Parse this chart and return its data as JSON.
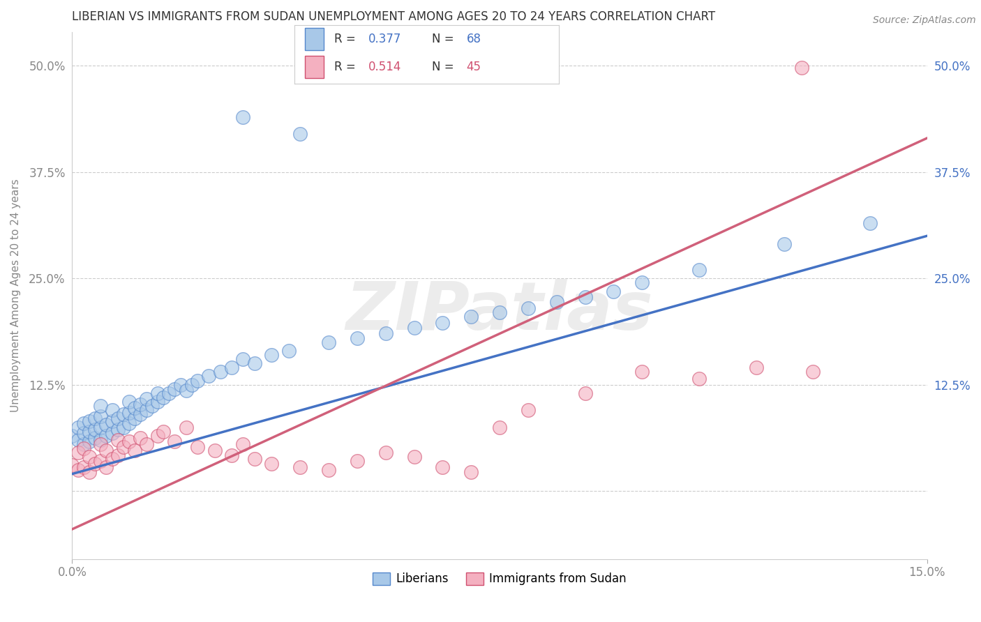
{
  "title": "LIBERIAN VS IMMIGRANTS FROM SUDAN UNEMPLOYMENT AMONG AGES 20 TO 24 YEARS CORRELATION CHART",
  "source": "Source: ZipAtlas.com",
  "ylabel": "Unemployment Among Ages 20 to 24 years",
  "ytick_labels": [
    "",
    "12.5%",
    "25.0%",
    "37.5%",
    "50.0%"
  ],
  "ytick_values": [
    0.0,
    0.125,
    0.25,
    0.375,
    0.5
  ],
  "right_ytick_labels": [
    "",
    "12.5%",
    "25.0%",
    "37.5%",
    "50.0%"
  ],
  "xmin": 0.0,
  "xmax": 0.15,
  "ymin": -0.08,
  "ymax": 0.54,
  "liberian_color": "#a8c8e8",
  "liberian_edge_color": "#5588cc",
  "sudan_color": "#f4b0c0",
  "sudan_edge_color": "#d05070",
  "liberian_line_color": "#4472c4",
  "sudan_line_color": "#d0607a",
  "liberian_R": 0.377,
  "liberian_N": 68,
  "sudan_R": 0.514,
  "sudan_N": 45,
  "watermark": "ZIPatlas",
  "legend_label_1": "Liberians",
  "legend_label_2": "Immigrants from Sudan",
  "liberian_x": [
    0.001,
    0.001,
    0.002,
    0.002,
    0.003,
    0.003,
    0.004,
    0.004,
    0.005,
    0.005,
    0.005,
    0.006,
    0.006,
    0.007,
    0.007,
    0.008,
    0.008,
    0.009,
    0.009,
    0.01,
    0.01,
    0.01,
    0.012,
    0.012,
    0.013,
    0.013,
    0.014,
    0.015,
    0.015,
    0.016,
    0.016,
    0.017,
    0.018,
    0.019,
    0.02,
    0.02,
    0.021,
    0.022,
    0.023,
    0.024,
    0.025,
    0.026,
    0.028,
    0.03,
    0.032,
    0.035,
    0.038,
    0.04,
    0.042,
    0.045,
    0.048,
    0.05,
    0.055,
    0.06,
    0.065,
    0.07,
    0.075,
    0.08,
    0.085,
    0.09,
    0.095,
    0.1,
    0.105,
    0.11,
    0.115,
    0.12,
    0.13,
    0.14
  ],
  "liberian_y": [
    0.055,
    0.065,
    0.06,
    0.07,
    0.058,
    0.072,
    0.055,
    0.068,
    0.06,
    0.075,
    0.08,
    0.058,
    0.068,
    0.062,
    0.078,
    0.06,
    0.072,
    0.065,
    0.08,
    0.068,
    0.075,
    0.085,
    0.07,
    0.082,
    0.075,
    0.09,
    0.078,
    0.085,
    0.095,
    0.088,
    0.1,
    0.092,
    0.098,
    0.105,
    0.095,
    0.108,
    0.1,
    0.11,
    0.105,
    0.115,
    0.108,
    0.118,
    0.12,
    0.125,
    0.13,
    0.14,
    0.15,
    0.145,
    0.16,
    0.155,
    0.165,
    0.17,
    0.18,
    0.175,
    0.185,
    0.19,
    0.195,
    0.2,
    0.21,
    0.215,
    0.22,
    0.225,
    0.23,
    0.235,
    0.24,
    0.265,
    0.295,
    0.32
  ],
  "sudan_x": [
    0.001,
    0.001,
    0.002,
    0.002,
    0.003,
    0.003,
    0.004,
    0.005,
    0.005,
    0.006,
    0.007,
    0.007,
    0.008,
    0.008,
    0.009,
    0.01,
    0.011,
    0.012,
    0.013,
    0.014,
    0.015,
    0.016,
    0.018,
    0.02,
    0.022,
    0.025,
    0.028,
    0.03,
    0.033,
    0.036,
    0.04,
    0.045,
    0.05,
    0.055,
    0.06,
    0.065,
    0.07,
    0.08,
    0.085,
    0.09,
    0.1,
    0.11,
    0.12,
    0.13,
    0.14
  ],
  "sudan_y": [
    0.045,
    0.02,
    0.038,
    0.025,
    0.042,
    0.018,
    0.035,
    0.028,
    0.048,
    0.032,
    0.038,
    0.052,
    0.035,
    0.06,
    0.042,
    0.055,
    0.045,
    0.062,
    0.048,
    0.068,
    0.058,
    0.072,
    0.065,
    0.078,
    0.055,
    0.045,
    0.052,
    0.068,
    0.042,
    0.038,
    0.032,
    0.028,
    0.035,
    0.045,
    0.058,
    0.028,
    0.022,
    0.1,
    0.11,
    0.12,
    0.148,
    0.13,
    0.14,
    0.135,
    0.125
  ]
}
